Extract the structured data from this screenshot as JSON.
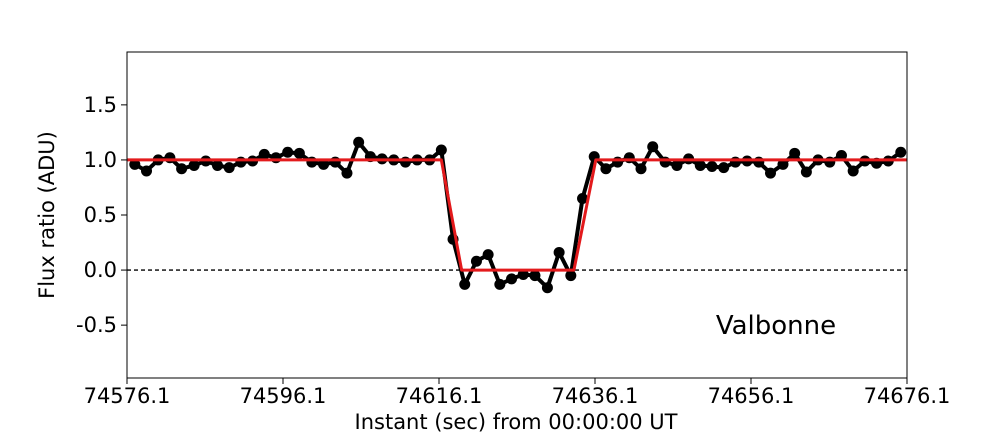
{
  "chart_data": {
    "type": "line",
    "xlabel": "Instant (sec) from 00:00:00 UT",
    "ylabel": "Flux ratio (ADU)",
    "annotation": "Valbonne",
    "xlim": [
      74576.1,
      74676.1
    ],
    "xticks": [
      74576.1,
      74596.1,
      74616.1,
      74636.1,
      74656.1,
      74676.1
    ],
    "ylim": [
      -0.98,
      1.98
    ],
    "yticks": [
      -0.5,
      {
        "value": 0,
        "label": "0.0"
      },
      0.5,
      {
        "value": 1,
        "label": "1.0"
      },
      1.5
    ],
    "reference_line": {
      "value": 0,
      "color": "#000000",
      "style": "dashed"
    },
    "series": [
      {
        "color": "#000000",
        "markers": true,
        "x": [
          74577.1,
          74578.6,
          74580.1,
          74581.6,
          74583.1,
          74584.7,
          74586.2,
          74587.7,
          74589.2,
          74590.7,
          74592.2,
          74593.7,
          74595.2,
          74596.7,
          74598.2,
          74599.8,
          74601.3,
          74602.8,
          74604.3,
          74605.8,
          74607.3,
          74608.8,
          74610.3,
          74611.8,
          74613.3,
          74614.9,
          74616.4,
          74617.9,
          74619.4,
          74620.9,
          74622.4,
          74623.9,
          74625.4,
          74626.9,
          74628.4,
          74630.0,
          74631.5,
          74633.0,
          74634.5,
          74636.0,
          74637.5,
          74639.0,
          74640.5,
          74642.0,
          74643.5,
          74645.1,
          74646.6,
          74648.1,
          74649.6,
          74651.1,
          74652.6,
          74654.1,
          74655.6,
          74657.1,
          74658.6,
          74660.2,
          74661.7,
          74663.2,
          74664.7,
          74666.2,
          74667.7,
          74669.2,
          74670.7,
          74672.2,
          74673.7,
          74675.3
        ],
        "values": [
          0.96,
          0.9,
          1.0,
          1.02,
          0.92,
          0.95,
          0.99,
          0.95,
          0.93,
          0.98,
          0.99,
          1.05,
          1.02,
          1.07,
          1.06,
          0.98,
          0.96,
          0.98,
          0.88,
          1.16,
          1.03,
          1.01,
          1.0,
          0.98,
          1.0,
          1.0,
          1.09,
          0.28,
          -0.13,
          0.08,
          0.14,
          -0.13,
          -0.08,
          -0.04,
          -0.05,
          -0.16,
          0.16,
          -0.05,
          0.65,
          1.03,
          0.92,
          0.98,
          1.02,
          0.92,
          1.12,
          0.98,
          0.95,
          1.01,
          0.95,
          0.94,
          0.93,
          0.98,
          0.99,
          0.98,
          0.88,
          0.96,
          1.06,
          0.89,
          1.0,
          0.98,
          1.04,
          0.9,
          0.99,
          0.97,
          0.99,
          1.07
        ]
      },
      {
        "color": "#e31a1c",
        "markers": false,
        "x": [
          74576.1,
          74616.4,
          74619.0,
          74633.4,
          74636.2,
          74676.1
        ],
        "values": [
          1,
          1,
          0,
          0,
          1,
          1
        ]
      }
    ]
  }
}
